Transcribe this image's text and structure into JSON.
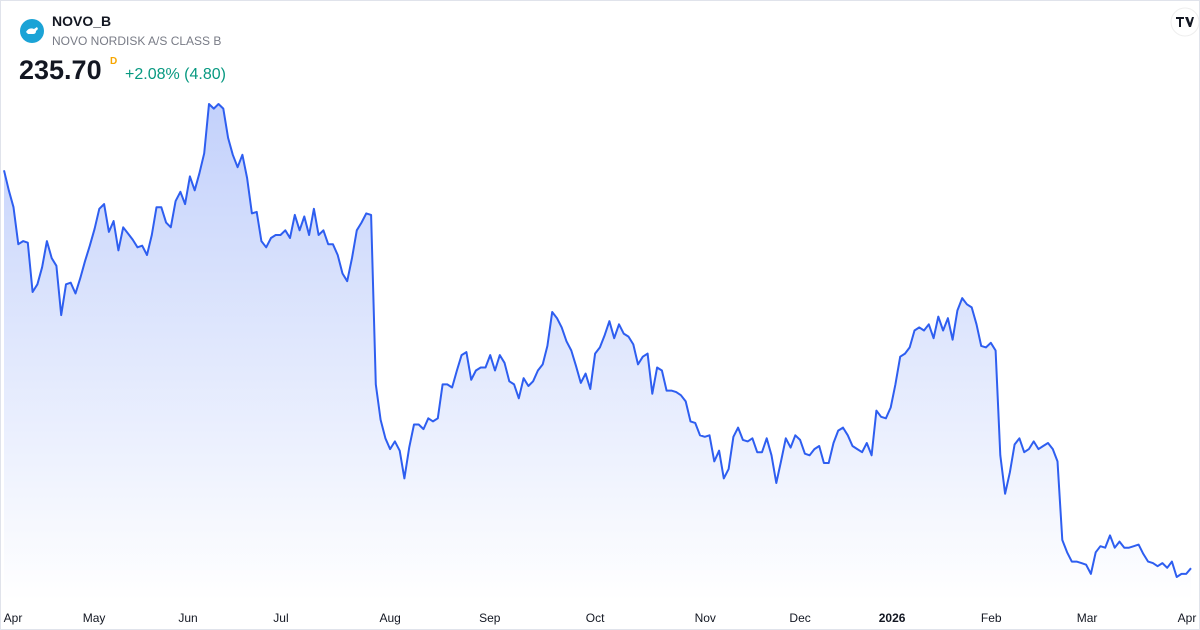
{
  "header": {
    "symbol": "NOVO_B",
    "name": "NOVO NORDISK A/S CLASS B",
    "price": "235.70",
    "price_flag": "D",
    "change": "+2.08% (4.80)"
  },
  "chart_data": {
    "type": "area",
    "color": "#2e5ef0",
    "values": [
      494,
      481,
      470,
      446,
      448,
      447,
      415,
      420,
      431,
      448,
      437,
      432,
      400,
      420,
      421,
      414,
      424,
      435,
      445,
      456,
      469,
      472,
      454,
      461,
      442,
      457,
      453,
      449,
      444,
      445,
      439,
      452,
      470,
      470,
      460,
      457,
      474,
      480,
      472,
      490,
      481,
      492,
      505,
      537,
      534,
      537,
      534,
      515,
      504,
      496,
      504,
      489,
      466,
      467,
      448,
      444,
      450,
      452,
      452,
      455,
      450,
      465,
      455,
      464,
      452,
      469,
      452,
      455,
      446,
      446,
      439,
      427,
      422,
      437,
      455,
      460,
      466,
      465,
      355,
      332,
      320,
      313,
      318,
      312,
      294,
      314,
      329,
      329,
      326,
      333,
      331,
      333,
      355,
      355,
      353,
      364,
      374,
      376,
      358,
      364,
      366,
      366,
      374,
      364,
      374,
      369,
      357,
      355,
      346,
      359,
      354,
      357,
      364,
      368,
      380,
      402,
      398,
      392,
      383,
      377,
      367,
      356,
      362,
      352,
      375,
      379,
      387,
      396,
      385,
      394,
      388,
      386,
      381,
      368,
      373,
      375,
      349,
      366,
      364,
      351,
      351,
      350,
      348,
      344,
      331,
      330,
      322,
      321,
      322,
      305,
      312,
      294,
      300,
      321,
      327,
      319,
      318,
      320,
      311,
      311,
      320,
      309,
      291,
      305,
      320,
      314,
      322,
      319,
      310,
      309,
      313,
      315,
      304,
      304,
      317,
      325,
      327,
      322,
      315,
      313,
      311,
      317,
      309,
      338,
      334,
      333,
      340,
      355,
      373,
      375,
      379,
      390,
      392,
      390,
      394,
      385,
      399,
      390,
      398,
      384,
      403,
      411,
      407,
      405,
      394,
      380,
      379,
      382,
      377,
      309,
      284,
      298,
      316,
      320,
      311,
      313,
      318,
      313,
      315,
      317,
      313,
      305,
      254,
      246,
      240,
      240,
      239,
      238,
      232,
      246,
      250,
      249,
      257,
      249,
      253,
      249,
      249,
      250,
      251,
      245,
      240,
      239,
      237,
      239,
      236,
      240,
      230,
      232,
      232,
      235.7
    ],
    "xticks": [
      {
        "value": 1.7,
        "label": "Apr"
      },
      {
        "value": 18.9,
        "label": "May"
      },
      {
        "value": 38.6,
        "label": "Jun"
      },
      {
        "value": 58.1,
        "label": "Jul"
      },
      {
        "value": 81.0,
        "label": "Aug"
      },
      {
        "value": 101.9,
        "label": "Sep"
      },
      {
        "value": 124.0,
        "label": "Oct"
      },
      {
        "value": 147.1,
        "label": "Nov"
      },
      {
        "value": 167.0,
        "label": "Dec"
      },
      {
        "value": 186.3,
        "label": "2026"
      },
      {
        "value": 207.1,
        "label": "Feb"
      },
      {
        "value": 227.2,
        "label": "Mar"
      },
      {
        "value": 248.6,
        "label": "Apr"
      }
    ]
  }
}
